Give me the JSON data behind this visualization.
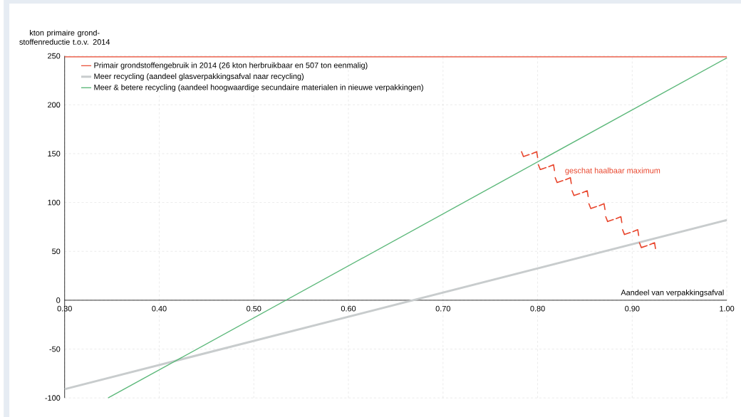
{
  "chart_data": {
    "type": "line",
    "ylabel": "kton primaire grond-stoffenreductie t.o.v. 2014",
    "xlabel": "Aandeel van verpakkingsafval",
    "series": [
      {
        "name": "Primair grondstoffengebruik in 2014 (26 kton herbruikbaar en 507 ton eenmalig)",
        "color": "#e8452c",
        "x": [
          0.3,
          1.0
        ],
        "values": [
          249,
          249
        ]
      },
      {
        "name": "Meer recycling (aandeel glasverpakkingsafval naar recycling)",
        "color": "#c8cccd",
        "x": [
          0.3,
          1.0
        ],
        "values": [
          -91,
          82
        ]
      },
      {
        "name": "Meer & betere recycling (aandeel hoogwaardige secundaire materialen in nieuwe verpakkingen)",
        "color": "#5cb87a",
        "x": [
          0.346,
          1.0
        ],
        "values": [
          -100,
          248
        ]
      }
    ],
    "annotations": [
      "geschat haalbaar maximum"
    ],
    "xlim": [
      0.3,
      1.0
    ],
    "ylim": [
      -100,
      250
    ],
    "xticks": [
      {
        "value": 0.3,
        "label": "0.30"
      },
      {
        "value": 0.4,
        "label": "0.40"
      },
      {
        "value": 0.5,
        "label": "0.50"
      },
      {
        "value": 0.6,
        "label": "0.60"
      },
      {
        "value": 0.7,
        "label": "0.70"
      },
      {
        "value": 0.8,
        "label": "0.80"
      },
      {
        "value": 0.9,
        "label": "0.90"
      },
      {
        "value": 1.0,
        "label": "1.00"
      }
    ],
    "yticks": [
      -100,
      -50,
      0,
      50,
      100,
      150,
      200,
      250
    ],
    "grid": true,
    "legend": "top left",
    "marker": "none",
    "line_style": "solid"
  }
}
